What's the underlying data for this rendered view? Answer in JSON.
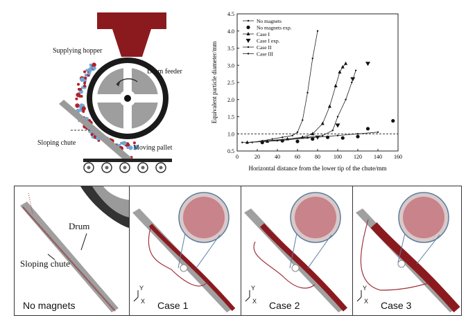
{
  "schematic": {
    "labels": {
      "hopper": "Supplying hopper",
      "drum": "Drum feeder",
      "chute": "Sloping chute",
      "pallet": "Moving pallet"
    },
    "colors": {
      "hopper": "#8b1a1f",
      "blue_particle": "#6fa8d6",
      "red_particle": "#b3202a",
      "drum_ring": "#1a1a1a",
      "drum_fill": "#9e9e9e"
    }
  },
  "chart_data": {
    "type": "line",
    "xlabel": "Horizontal distance from the lower tip of the chute/mm",
    "ylabel": "Equivalent particle diameter/mm",
    "xlim": [
      0,
      160
    ],
    "ylim": [
      0.5,
      4.5
    ],
    "xticks": [
      "0",
      "20",
      "40",
      "60",
      "80",
      "100",
      "120",
      "140",
      "160"
    ],
    "yticks": [
      "0.5",
      "1.0",
      "1.5",
      "2.0",
      "2.5",
      "3.0",
      "3.5",
      "4.0",
      "4.5"
    ],
    "reference_line": 1.0,
    "legend": [
      "No magnets",
      "No magnets exp.",
      "Case   I",
      "Case   I exp.",
      "Case   II",
      "Case III"
    ],
    "series": [
      {
        "name": "No magnets",
        "marker": "dot",
        "x": [
          5,
          15,
          25,
          35,
          45,
          55,
          60,
          65,
          70,
          75,
          80
        ],
        "y": [
          0.75,
          0.75,
          0.8,
          0.85,
          0.9,
          0.95,
          1.05,
          1.4,
          2.2,
          3.2,
          4.0
        ]
      },
      {
        "name": "No magnets exp.",
        "marker": "circle",
        "x": [
          25,
          45,
          60,
          75,
          90,
          105,
          120,
          130,
          155
        ],
        "y": [
          0.75,
          0.8,
          0.78,
          0.85,
          0.9,
          0.88,
          0.92,
          1.15,
          1.38
        ]
      },
      {
        "name": "Case   I",
        "marker": "tri-up",
        "x": [
          10,
          30,
          50,
          65,
          75,
          85,
          92,
          98,
          102,
          105,
          108
        ],
        "y": [
          0.75,
          0.78,
          0.85,
          0.9,
          1.0,
          1.3,
          1.8,
          2.4,
          2.8,
          2.95,
          3.05
        ]
      },
      {
        "name": "Case   I exp.",
        "marker": "tri-down",
        "x": [
          80,
          100,
          115,
          130
        ],
        "y": [
          0.9,
          1.25,
          2.6,
          3.05
        ]
      },
      {
        "name": "Case   II",
        "marker": "dot",
        "x": [
          10,
          30,
          50,
          70,
          85,
          95,
          100,
          108,
          114,
          118
        ],
        "y": [
          0.75,
          0.8,
          0.85,
          0.9,
          0.95,
          1.1,
          1.5,
          2.0,
          2.5,
          2.85
        ]
      },
      {
        "name": "Case III",
        "marker": "dot",
        "x": [
          10,
          40,
          70,
          100,
          120,
          140
        ],
        "y": [
          0.75,
          0.8,
          0.88,
          0.95,
          1.0,
          1.05
        ]
      }
    ]
  },
  "panels": [
    {
      "label": "No magnets",
      "annotations": [
        "Drum",
        "Sloping chute"
      ]
    },
    {
      "label": "Case 1",
      "axes": [
        "Y",
        "X"
      ]
    },
    {
      "label": "Case 2",
      "axes": [
        "Y",
        "X"
      ]
    },
    {
      "label": "Case 3",
      "axes": [
        "Y",
        "X"
      ]
    }
  ]
}
